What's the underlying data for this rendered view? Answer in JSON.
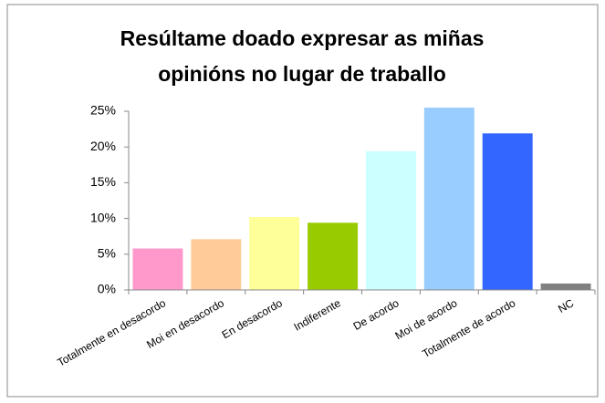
{
  "chart_data": {
    "type": "bar",
    "title": [
      "Resúltame doado expresar as miñas",
      "opinións no lugar de traballo"
    ],
    "categories": [
      "Totalmente en desacordo",
      "Moi en desacordo",
      "En desacordo",
      "Indiferente",
      "De acordo",
      "Moi de acordo",
      "Totalmente de acordo",
      "NC"
    ],
    "values": [
      5.8,
      7.1,
      10.2,
      9.4,
      19.4,
      25.5,
      21.9,
      0.9
    ],
    "colors": [
      "#ff99cc",
      "#ffcc99",
      "#ffff99",
      "#99cc00",
      "#ccffff",
      "#99ccff",
      "#3366ff",
      "#808080"
    ],
    "ylim": [
      0,
      25
    ],
    "yticks": [
      {
        "value": 0,
        "label": "0%"
      },
      {
        "value": 5,
        "label": "5%"
      },
      {
        "value": 10,
        "label": "10%"
      },
      {
        "value": 15,
        "label": "15%"
      },
      {
        "value": 20,
        "label": "20%"
      },
      {
        "value": 25,
        "label": "25%"
      }
    ],
    "grid": false
  }
}
